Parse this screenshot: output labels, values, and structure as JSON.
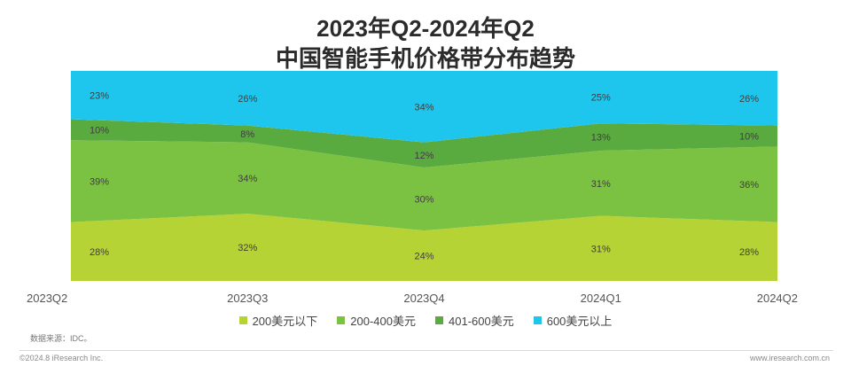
{
  "title_line1": "2023年Q2-2024年Q2",
  "title_line2": "中国智能手机价格带分布趋势",
  "source": "数据来源：IDC。",
  "copyright": "©2024.8 iResearch Inc.",
  "site": "www.iresearch.com.cn",
  "chart_data": {
    "type": "area",
    "stacked": true,
    "percent": true,
    "categories": [
      "2023Q2",
      "2023Q3",
      "2023Q4",
      "2024Q1",
      "2024Q2"
    ],
    "series": [
      {
        "name": "200美元以下",
        "values": [
          28,
          32,
          24,
          31,
          28
        ],
        "color": "#b5d335"
      },
      {
        "name": "200-400美元",
        "values": [
          39,
          34,
          30,
          31,
          36
        ],
        "color": "#7cc242"
      },
      {
        "name": "401-600美元",
        "values": [
          10,
          8,
          12,
          13,
          10
        ],
        "color": "#5aab3f"
      },
      {
        "name": "600美元以上",
        "values": [
          23,
          26,
          34,
          25,
          26
        ],
        "color": "#1ec5ed"
      }
    ],
    "labels": [
      [
        "28%",
        "32%",
        "24%",
        "31%",
        "28%"
      ],
      [
        "39%",
        "34%",
        "30%",
        "31%",
        "36%"
      ],
      [
        "10%",
        "8%",
        "12%",
        "13%",
        "10%"
      ],
      [
        "23%",
        "26%",
        "34%",
        "25%",
        "26%"
      ]
    ],
    "ylim": [
      0,
      100
    ],
    "legend": "bottom"
  }
}
